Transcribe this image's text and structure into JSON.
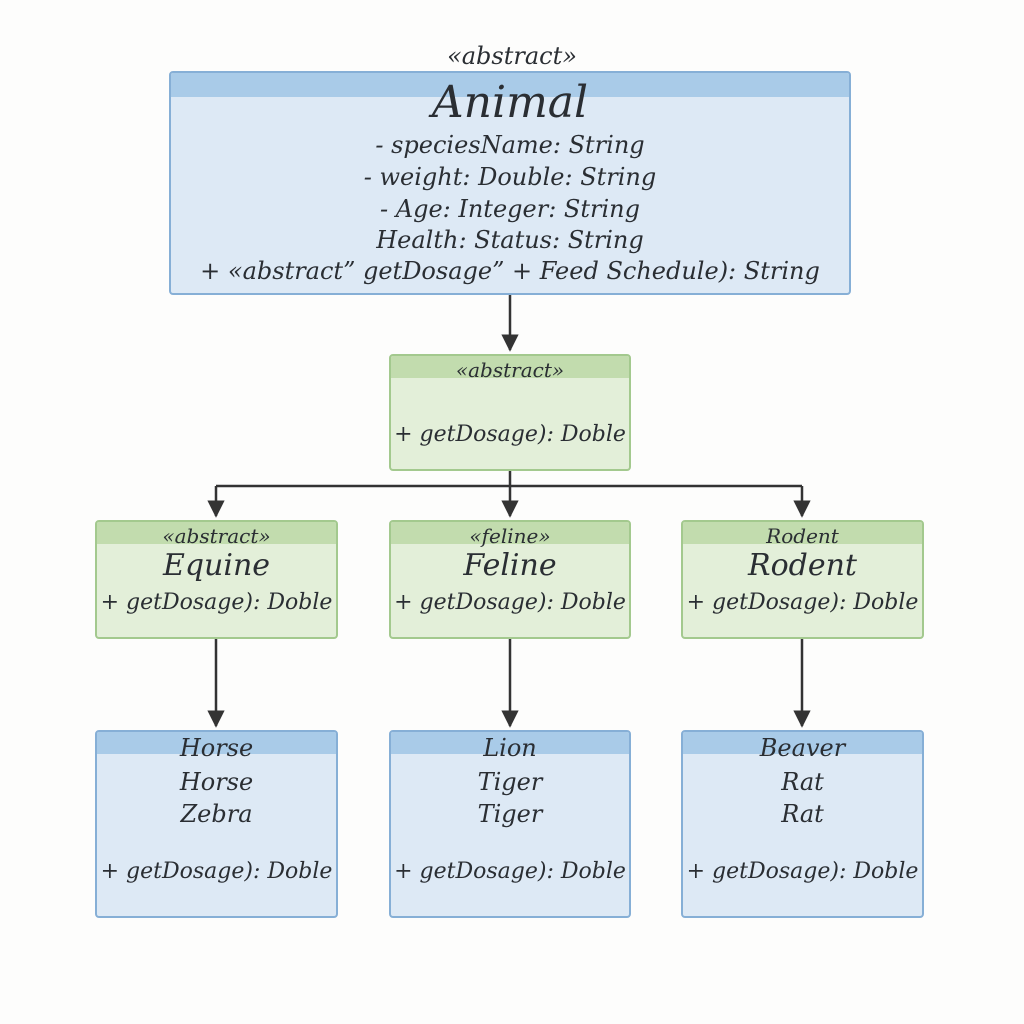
{
  "animal": {
    "stereotype": "«abstract»",
    "name": "Animal",
    "attributes": [
      "- speciesName: String",
      "- weight: Double: String",
      "- Age: Integer: String",
      "Health: Status:  String",
      "+ «abstract” getDosage” + Feed Schedule): String"
    ]
  },
  "middle": {
    "stereotype": "«abstract»",
    "method": "+ getDosage): Doble"
  },
  "categories": [
    {
      "stereotype": "«abstract»",
      "name": "Equine",
      "method": "+ getDosage): Doble"
    },
    {
      "stereotype": "«feline»",
      "name": "Feline",
      "method": "+ getDosage): Doble"
    },
    {
      "stereotype": "Rodent",
      "name": "Rodent",
      "method": "+ getDosage): Doble"
    }
  ],
  "leaves": [
    {
      "lines": [
        "Horse",
        "Horse",
        "Zebra"
      ],
      "method": "+ getDosage): Doble"
    },
    {
      "lines": [
        "Lion",
        "Tiger",
        "Tiger"
      ],
      "method": "+ getDosage): Doble"
    },
    {
      "lines": [
        "Beaver",
        "Rat",
        "Rat"
      ],
      "method": "+ getDosage): Doble"
    }
  ],
  "colors": {
    "blue_fill": "#dde9f5",
    "blue_header": "#a9cbe8",
    "blue_border": "#86afd6",
    "green_fill": "#e3efd9",
    "green_header": "#c2dcae",
    "green_border": "#a3c98e",
    "connector": "#333333"
  }
}
